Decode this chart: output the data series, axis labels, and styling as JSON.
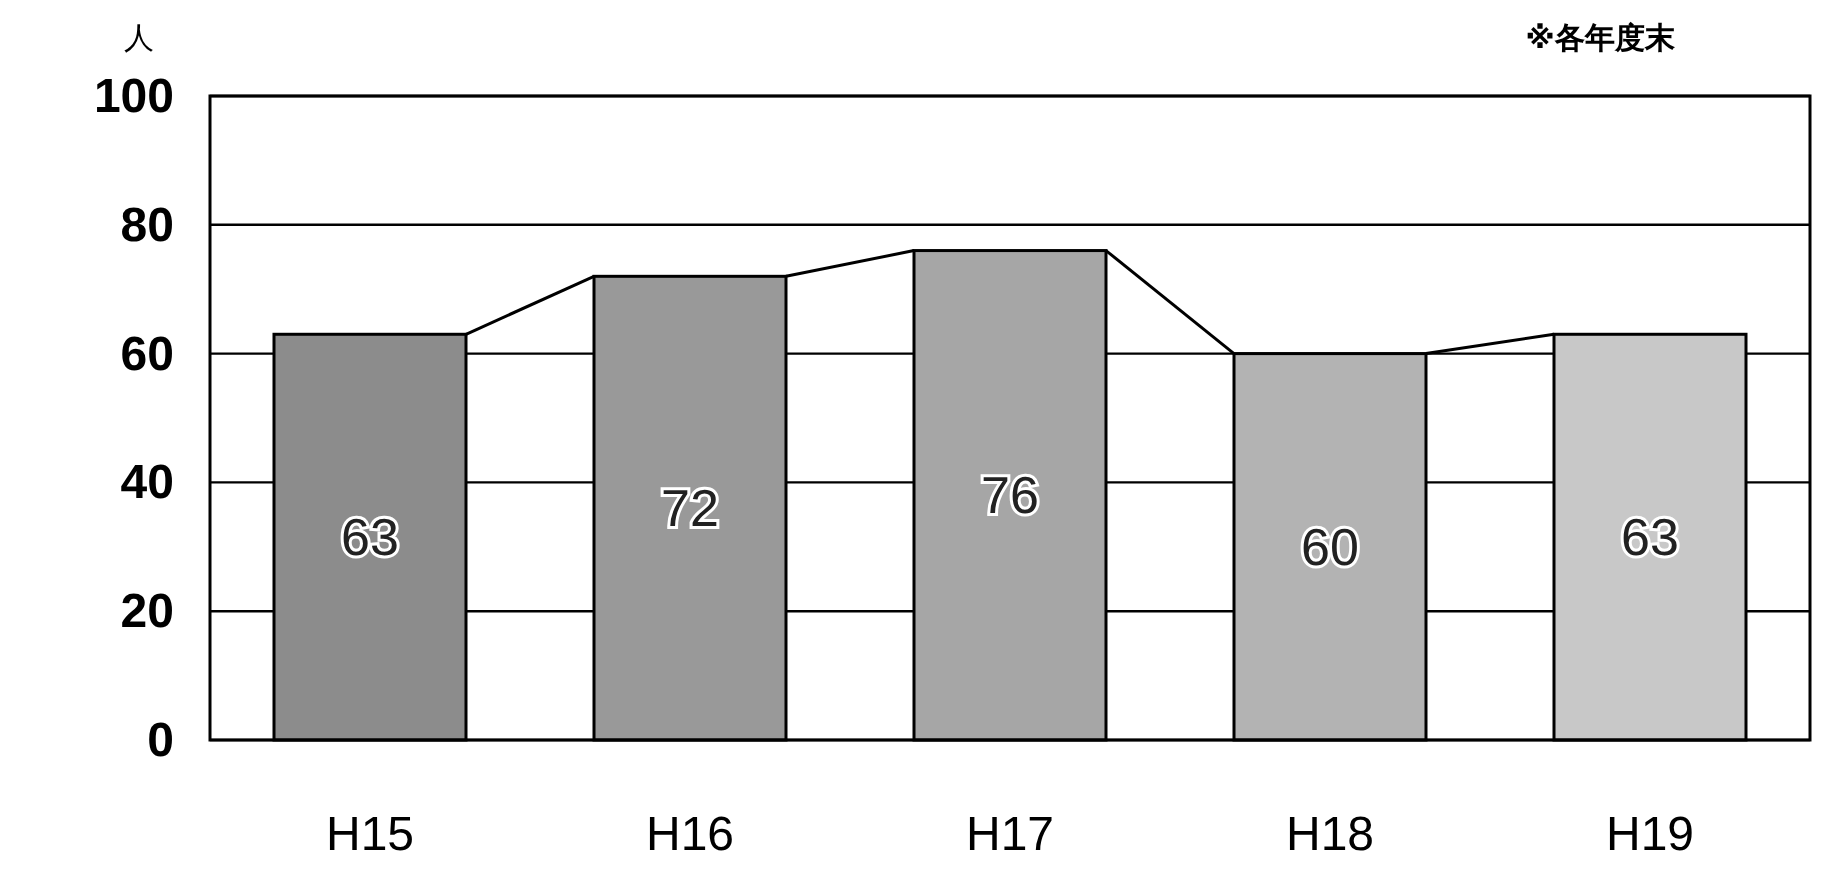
{
  "chart_data": {
    "type": "bar",
    "ylabel": "人",
    "annotations": [
      "※各年度末"
    ],
    "categories": [
      "H15",
      "H16",
      "H17",
      "H18",
      "H19"
    ],
    "values": [
      63,
      72,
      76,
      60,
      63
    ],
    "colors": [
      "#8c8c8c",
      "#999999",
      "#a6a6a6",
      "#b3b3b3",
      "#c8c8c8"
    ],
    "ylim": [
      0,
      100
    ],
    "yticks": [
      0,
      20,
      40,
      60,
      80,
      100
    ],
    "grid": "y",
    "data_labels": true
  }
}
